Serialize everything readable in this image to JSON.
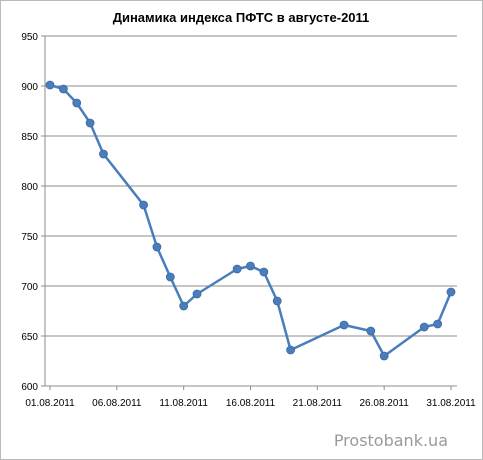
{
  "chart_data": {
    "type": "line",
    "title": "Динамика индекса ПФТС в августе-2011",
    "xlabel": "",
    "ylabel": "",
    "ylim": [
      600,
      950
    ],
    "yticks": [
      "600",
      "650",
      "700",
      "750",
      "800",
      "850",
      "900",
      "950"
    ],
    "xlim": [
      "01.08.2011",
      "31.08.2011"
    ],
    "xticks": [
      "01.08.2011",
      "06.08.2011",
      "11.08.2011",
      "16.08.2011",
      "21.08.2011",
      "26.08.2011",
      "31.08.2011"
    ],
    "grid": "horizontal",
    "legend": "none",
    "series_color": "#4a7ebb",
    "series": [
      {
        "x": [
          "01.08.2011",
          "02.08.2011",
          "03.08.2011",
          "04.08.2011",
          "05.08.2011",
          "08.08.2011",
          "09.08.2011",
          "10.08.2011",
          "11.08.2011",
          "12.08.2011",
          "15.08.2011",
          "16.08.2011",
          "17.08.2011",
          "18.08.2011",
          "19.08.2011",
          "23.08.2011",
          "25.08.2011",
          "26.08.2011",
          "29.08.2011",
          "30.08.2011",
          "31.08.2011"
        ],
        "values": [
          901,
          897,
          883,
          863,
          832,
          781,
          739,
          709,
          680,
          692,
          717,
          720,
          714,
          685,
          636,
          661,
          655,
          630,
          659,
          662,
          694
        ]
      }
    ]
  },
  "watermark": "Prostobank.ua"
}
